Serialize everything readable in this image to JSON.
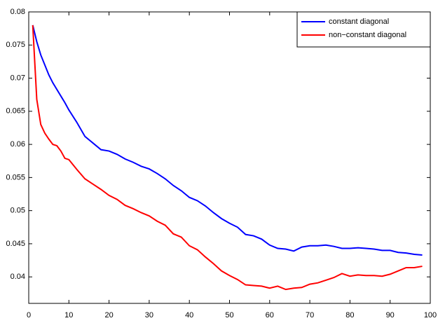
{
  "chart_data": {
    "type": "line",
    "x": [
      1,
      2,
      3,
      4,
      5,
      6,
      7,
      8,
      9,
      10,
      12,
      14,
      16,
      18,
      20,
      22,
      24,
      26,
      28,
      30,
      32,
      34,
      36,
      38,
      40,
      42,
      44,
      46,
      48,
      50,
      52,
      54,
      56,
      58,
      60,
      62,
      64,
      66,
      68,
      70,
      72,
      74,
      76,
      78,
      80,
      82,
      84,
      86,
      88,
      90,
      92,
      94,
      96,
      98
    ],
    "series": [
      {
        "name": "constant diagonal",
        "color": "#0000ff",
        "values": [
          0.078,
          0.0755,
          0.0735,
          0.072,
          0.0705,
          0.0693,
          0.0683,
          0.0673,
          0.0663,
          0.0652,
          0.0633,
          0.0612,
          0.0602,
          0.0592,
          0.059,
          0.0585,
          0.0578,
          0.0573,
          0.0567,
          0.0563,
          0.0556,
          0.0548,
          0.0538,
          0.053,
          0.052,
          0.0515,
          0.0507,
          0.0497,
          0.0488,
          0.0481,
          0.0475,
          0.0464,
          0.0462,
          0.0457,
          0.0448,
          0.0443,
          0.0442,
          0.0439,
          0.0445,
          0.0447,
          0.0447,
          0.0448,
          0.0446,
          0.0443,
          0.0443,
          0.0444,
          0.0443,
          0.0442,
          0.044,
          0.044,
          0.0437,
          0.0436,
          0.0434,
          0.0433
        ]
      },
      {
        "name": "non−constant diagonal",
        "color": "#ff0000",
        "values": [
          0.078,
          0.0668,
          0.063,
          0.0617,
          0.0608,
          0.06,
          0.0598,
          0.059,
          0.0579,
          0.0577,
          0.0562,
          0.0548,
          0.054,
          0.0532,
          0.0523,
          0.0517,
          0.0508,
          0.0503,
          0.0497,
          0.0492,
          0.0484,
          0.0478,
          0.0465,
          0.046,
          0.0447,
          0.0441,
          0.043,
          0.042,
          0.0409,
          0.0402,
          0.0396,
          0.0388,
          0.0387,
          0.0386,
          0.0383,
          0.0386,
          0.0381,
          0.0383,
          0.0384,
          0.0389,
          0.0391,
          0.0395,
          0.0399,
          0.0405,
          0.0401,
          0.0403,
          0.0402,
          0.0402,
          0.0401,
          0.0404,
          0.0409,
          0.0414,
          0.0414,
          0.0416
        ]
      }
    ],
    "xlim": [
      0,
      100
    ],
    "xticks": [
      0,
      10,
      20,
      30,
      40,
      50,
      60,
      70,
      80,
      90,
      100
    ],
    "ylim": [
      0.036,
      0.08
    ],
    "yticks": [
      0.04,
      0.045,
      0.05,
      0.055,
      0.06,
      0.065,
      0.07,
      0.075,
      0.08
    ],
    "legend": "upper right"
  }
}
